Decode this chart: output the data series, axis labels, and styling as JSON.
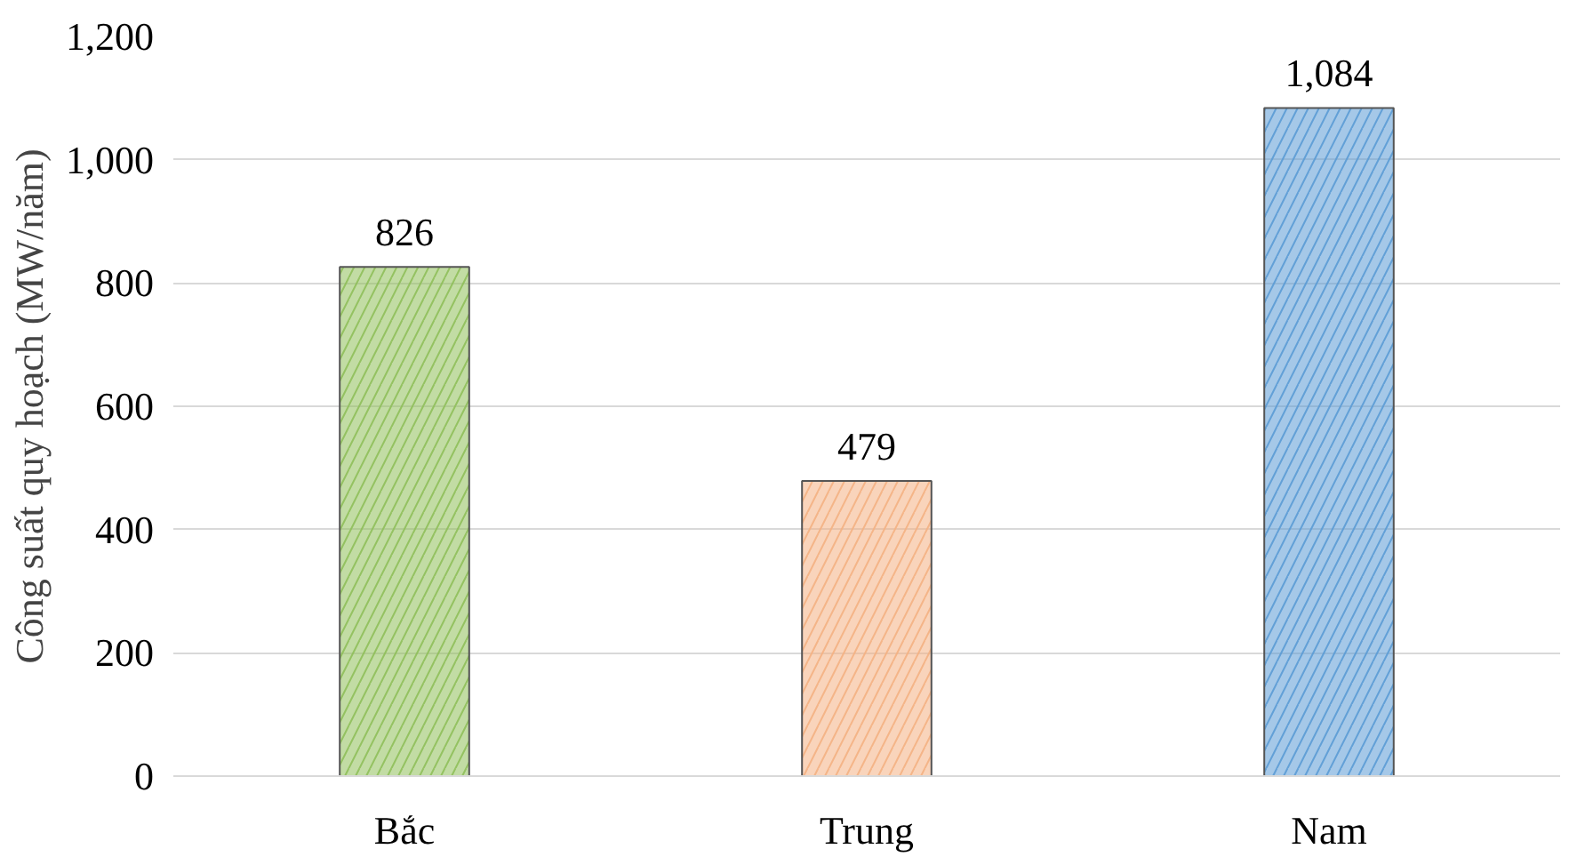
{
  "chart_data": {
    "type": "bar",
    "ylabel": "Công suất quy hoạch (MW/năm)",
    "categories": [
      "Bắc",
      "Trung",
      "Nam"
    ],
    "values": [
      826,
      479,
      1084
    ],
    "colors": [
      "#8fbf5a",
      "#f4b183",
      "#5b9bd5"
    ],
    "ylim": [
      0,
      1200
    ],
    "yticks": [
      0,
      200,
      400,
      600,
      800,
      {
        "value": 1000,
        "label": "1,000"
      },
      {
        "value": 1200,
        "label": "1,200"
      }
    ],
    "grid": "y",
    "data_labels": true,
    "value_labels": [
      "826",
      "479",
      "1,084"
    ]
  }
}
